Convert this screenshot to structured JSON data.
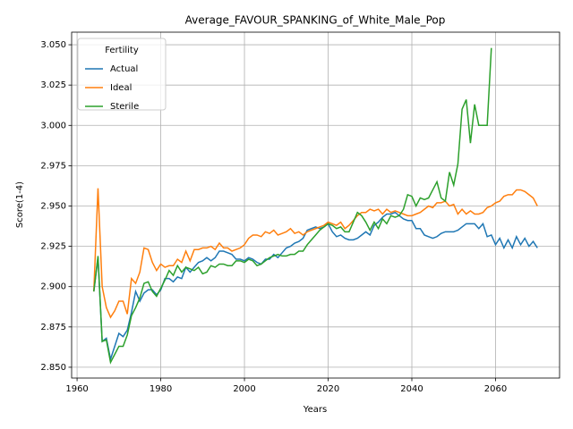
{
  "chart_data": {
    "type": "line",
    "title": "Average_FAVOUR_SPANKING_of_White_Male_Pop",
    "xlabel": "Years",
    "ylabel": "Score(1-4)",
    "legend_title": "Fertility",
    "legend": "upper left",
    "grid": true,
    "xlim": [
      1958.7,
      2075.3
    ],
    "ylim": [
      2.8433,
      3.0578
    ],
    "xticks": [
      1960,
      1980,
      2000,
      2020,
      2040,
      2060
    ],
    "yticks": [
      {
        "value": 2.85,
        "label": "2.850"
      },
      2.875,
      {
        "value": 2.9,
        "label": "2.900"
      },
      2.925,
      {
        "value": 2.95,
        "label": "2.950"
      },
      2.975,
      {
        "value": 3.0,
        "label": "3.000"
      },
      3.025,
      {
        "value": 3.05,
        "label": "3.050"
      }
    ],
    "series": [
      {
        "name": "Actual",
        "color": "#1f77b4",
        "x": [
          1964,
          1965,
          1966,
          1967,
          1968,
          1969,
          1970,
          1971,
          1972,
          1973,
          1974,
          1975,
          1976,
          1977,
          1978,
          1979,
          1980,
          1981,
          1982,
          1983,
          1984,
          1985,
          1986,
          1987,
          1988,
          1989,
          1990,
          1991,
          1992,
          1993,
          1994,
          1995,
          1996,
          1997,
          1998,
          1999,
          2000,
          2001,
          2002,
          2003,
          2004,
          2005,
          2006,
          2007,
          2008,
          2009,
          2010,
          2011,
          2012,
          2013,
          2014,
          2015,
          2016,
          2017,
          2018,
          2019,
          2020,
          2021,
          2022,
          2023,
          2024,
          2025,
          2026,
          2027,
          2028,
          2029,
          2030,
          2031,
          2032,
          2033,
          2034,
          2035,
          2036,
          2037,
          2038,
          2039,
          2040,
          2041,
          2042,
          2043,
          2044,
          2045,
          2046,
          2047,
          2048,
          2049,
          2050,
          2051,
          2052,
          2053,
          2054,
          2055,
          2056,
          2057,
          2058,
          2059,
          2060,
          2061,
          2062,
          2063,
          2064,
          2065,
          2066,
          2067,
          2068,
          2069,
          2070
        ],
        "values": [
          2.897,
          2.918,
          2.866,
          2.868,
          2.855,
          2.863,
          2.871,
          2.869,
          2.873,
          2.884,
          2.897,
          2.891,
          2.896,
          2.898,
          2.898,
          2.895,
          2.898,
          2.905,
          2.905,
          2.903,
          2.906,
          2.905,
          2.912,
          2.909,
          2.912,
          2.915,
          2.916,
          2.918,
          2.916,
          2.918,
          2.922,
          2.922,
          2.921,
          2.92,
          2.917,
          2.917,
          2.916,
          2.918,
          2.917,
          2.915,
          2.914,
          2.917,
          2.917,
          2.92,
          2.918,
          2.921,
          2.924,
          2.925,
          2.927,
          2.928,
          2.93,
          2.935,
          2.936,
          2.937,
          2.936,
          2.937,
          2.939,
          2.934,
          2.931,
          2.932,
          2.93,
          2.929,
          2.929,
          2.93,
          2.932,
          2.934,
          2.932,
          2.938,
          2.94,
          2.943,
          2.945,
          2.945,
          2.946,
          2.944,
          2.942,
          2.941,
          2.941,
          2.936,
          2.936,
          2.932,
          2.931,
          2.93,
          2.931,
          2.933,
          2.934,
          2.934,
          2.934,
          2.935,
          2.937,
          2.939,
          2.939,
          2.939,
          2.936,
          2.939,
          2.931,
          2.932,
          2.926,
          2.93,
          2.924,
          2.929,
          2.924,
          2.931,
          2.926,
          2.93,
          2.925,
          2.928,
          2.924
        ]
      },
      {
        "name": "Ideal",
        "color": "#ff7f0e",
        "x": [
          1964,
          1965,
          1966,
          1967,
          1968,
          1969,
          1970,
          1971,
          1972,
          1973,
          1974,
          1975,
          1976,
          1977,
          1978,
          1979,
          1980,
          1981,
          1982,
          1983,
          1984,
          1985,
          1986,
          1987,
          1988,
          1989,
          1990,
          1991,
          1992,
          1993,
          1994,
          1995,
          1996,
          1997,
          1998,
          1999,
          2000,
          2001,
          2002,
          2003,
          2004,
          2005,
          2006,
          2007,
          2008,
          2009,
          2010,
          2011,
          2012,
          2013,
          2014,
          2015,
          2016,
          2017,
          2018,
          2019,
          2020,
          2021,
          2022,
          2023,
          2024,
          2025,
          2026,
          2027,
          2028,
          2029,
          2030,
          2031,
          2032,
          2033,
          2034,
          2035,
          2036,
          2037,
          2038,
          2039,
          2040,
          2041,
          2042,
          2043,
          2044,
          2045,
          2046,
          2047,
          2048,
          2049,
          2050,
          2051,
          2052,
          2053,
          2054,
          2055,
          2056,
          2057,
          2058,
          2059,
          2060,
          2061,
          2062,
          2063,
          2064,
          2065,
          2066,
          2067,
          2068,
          2069,
          2070
        ],
        "values": [
          2.897,
          2.961,
          2.9,
          2.887,
          2.881,
          2.885,
          2.891,
          2.891,
          2.883,
          2.905,
          2.902,
          2.909,
          2.924,
          2.923,
          2.915,
          2.91,
          2.914,
          2.912,
          2.913,
          2.913,
          2.917,
          2.915,
          2.922,
          2.916,
          2.923,
          2.923,
          2.924,
          2.924,
          2.925,
          2.923,
          2.927,
          2.924,
          2.924,
          2.922,
          2.923,
          2.924,
          2.926,
          2.93,
          2.932,
          2.932,
          2.931,
          2.934,
          2.933,
          2.935,
          2.932,
          2.933,
          2.934,
          2.936,
          2.933,
          2.934,
          2.932,
          2.934,
          2.935,
          2.936,
          2.937,
          2.938,
          2.94,
          2.939,
          2.938,
          2.94,
          2.936,
          2.938,
          2.941,
          2.944,
          2.946,
          2.946,
          2.948,
          2.947,
          2.948,
          2.945,
          2.948,
          2.946,
          2.947,
          2.946,
          2.945,
          2.944,
          2.944,
          2.945,
          2.946,
          2.948,
          2.95,
          2.949,
          2.952,
          2.952,
          2.953,
          2.95,
          2.951,
          2.945,
          2.948,
          2.945,
          2.947,
          2.945,
          2.945,
          2.946,
          2.949,
          2.95,
          2.952,
          2.953,
          2.956,
          2.957,
          2.957,
          2.96,
          2.96,
          2.959,
          2.957,
          2.955,
          2.95
        ]
      },
      {
        "name": "Sterile",
        "color": "#2ca02c",
        "x": [
          1964,
          1965,
          1966,
          1967,
          1968,
          1969,
          1970,
          1971,
          1972,
          1973,
          1974,
          1975,
          1976,
          1977,
          1978,
          1979,
          1980,
          1981,
          1982,
          1983,
          1984,
          1985,
          1986,
          1987,
          1988,
          1989,
          1990,
          1991,
          1992,
          1993,
          1994,
          1995,
          1996,
          1997,
          1998,
          1999,
          2000,
          2001,
          2002,
          2003,
          2004,
          2005,
          2006,
          2007,
          2008,
          2009,
          2010,
          2011,
          2012,
          2013,
          2014,
          2015,
          2016,
          2017,
          2018,
          2019,
          2020,
          2021,
          2022,
          2023,
          2024,
          2025,
          2026,
          2027,
          2028,
          2029,
          2030,
          2031,
          2032,
          2033,
          2034,
          2035,
          2036,
          2037,
          2038,
          2039,
          2040,
          2041,
          2042,
          2043,
          2044,
          2045,
          2046,
          2047,
          2048,
          2049,
          2050,
          2051,
          2052,
          2053,
          2054,
          2055,
          2056,
          2057,
          2058,
          2059
        ],
        "values": [
          2.897,
          2.919,
          2.866,
          2.867,
          2.853,
          2.858,
          2.863,
          2.863,
          2.87,
          2.882,
          2.887,
          2.893,
          2.902,
          2.903,
          2.897,
          2.894,
          2.899,
          2.904,
          2.91,
          2.907,
          2.913,
          2.909,
          2.912,
          2.911,
          2.91,
          2.912,
          2.908,
          2.909,
          2.913,
          2.912,
          2.914,
          2.914,
          2.913,
          2.913,
          2.916,
          2.916,
          2.915,
          2.917,
          2.916,
          2.913,
          2.914,
          2.916,
          2.918,
          2.919,
          2.92,
          2.919,
          2.919,
          2.92,
          2.92,
          2.922,
          2.922,
          2.926,
          2.929,
          2.932,
          2.935,
          2.937,
          2.939,
          2.938,
          2.936,
          2.937,
          2.934,
          2.934,
          2.94,
          2.946,
          2.944,
          2.94,
          2.935,
          2.94,
          2.936,
          2.942,
          2.939,
          2.944,
          2.943,
          2.944,
          2.948,
          2.957,
          2.956,
          2.95,
          2.955,
          2.954,
          2.955,
          2.96,
          2.965,
          2.955,
          2.953,
          2.971,
          2.963,
          2.976,
          3.01,
          3.016,
          2.989,
          3.013,
          3.0,
          3.0,
          3.0,
          3.048
        ]
      }
    ]
  }
}
